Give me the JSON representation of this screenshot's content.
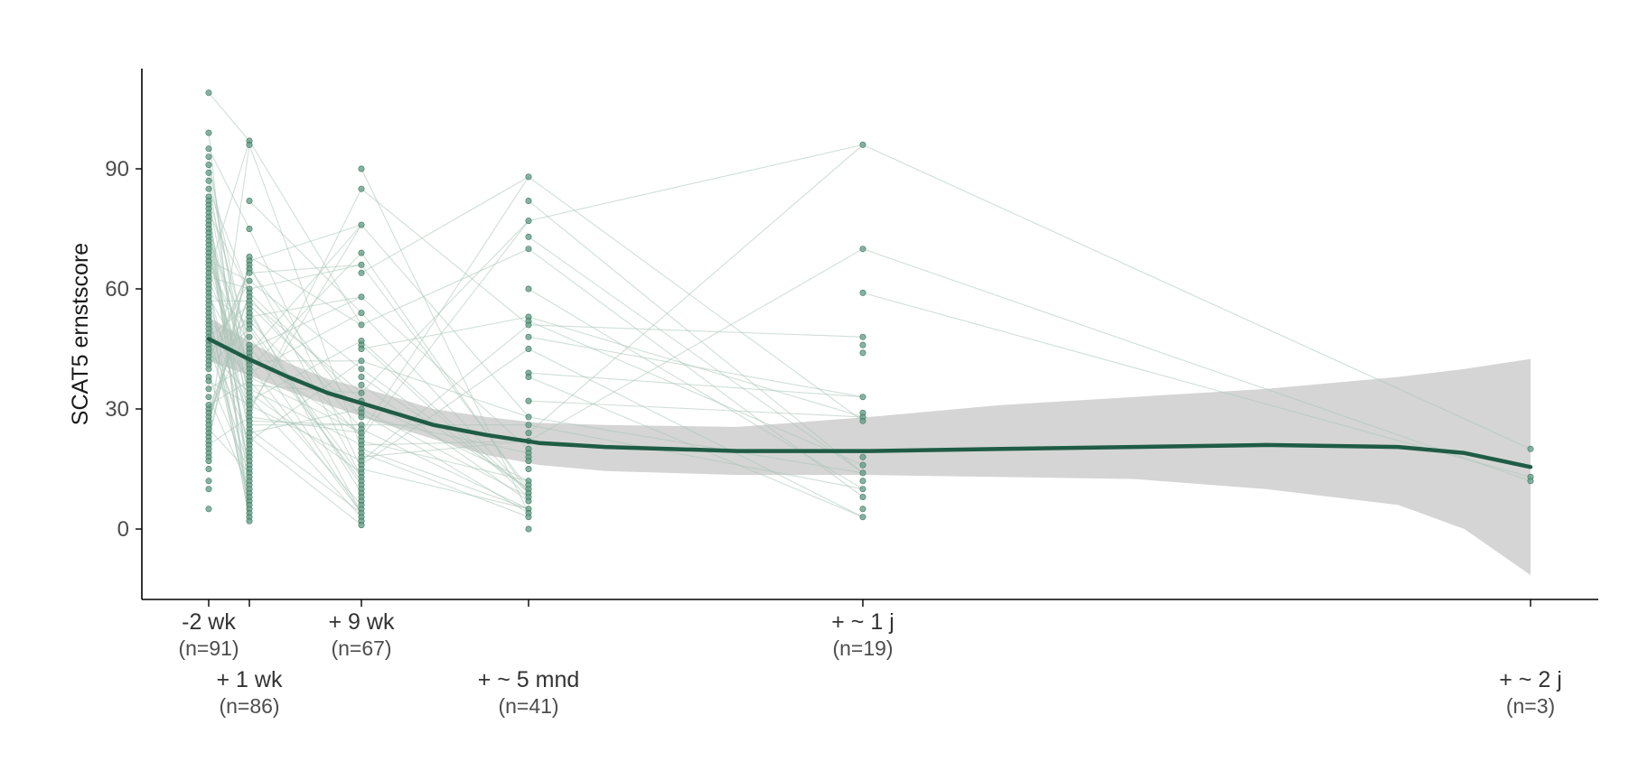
{
  "chart_data": {
    "type": "line",
    "title": "",
    "ylabel": "SCAT5 ernstscore",
    "xlabel": "",
    "ylim": [
      -17,
      115
    ],
    "yticks": [
      0,
      30,
      60,
      90
    ],
    "grid": false,
    "legend": "none",
    "colors": {
      "accent": "#1f5c45",
      "points": "#5f9a80",
      "individual_lines": "#a9c4b7",
      "ribbon": "#d3d3d3",
      "axis": "#000000"
    },
    "x_ticks": [
      {
        "id": "t1",
        "label": "-2 wk",
        "n": "(n=91)",
        "row": 1
      },
      {
        "id": "t2",
        "label": "+ 1 wk",
        "n": "(n=86)",
        "row": 2
      },
      {
        "id": "t3",
        "label": "+ 9 wk",
        "n": "(n=67)",
        "row": 1
      },
      {
        "id": "t4",
        "label": "+ ~ 5 mnd",
        "n": "(n=41)",
        "row": 2
      },
      {
        "id": "t5",
        "label": "+ ~ 1 j",
        "n": "(n=19)",
        "row": 1
      },
      {
        "id": "t6",
        "label": "+ ~ 2 j",
        "n": "(n=3)",
        "row": 2
      }
    ],
    "points": [
      {
        "tick": "t1",
        "values": [
          109,
          99,
          95,
          93,
          91,
          89,
          87,
          85,
          83,
          82,
          81,
          80,
          79,
          78,
          77,
          76,
          75,
          74,
          73,
          72,
          71,
          70,
          69,
          68,
          67,
          66,
          65,
          64,
          63,
          62,
          61,
          60,
          59,
          58,
          57,
          56,
          55,
          54,
          53,
          52,
          51,
          50,
          49,
          48,
          47,
          46,
          45,
          44,
          43,
          42,
          41,
          40,
          38,
          37,
          35,
          33,
          31,
          30,
          29,
          28,
          27,
          26,
          25,
          24,
          23,
          22,
          21,
          20,
          19,
          18,
          17,
          15,
          12,
          10,
          5
        ]
      },
      {
        "tick": "t2",
        "values": [
          97,
          96,
          82,
          75,
          68,
          67,
          66,
          65,
          64,
          62,
          60,
          59,
          58,
          57,
          56,
          55,
          54,
          53,
          52,
          51,
          50,
          48,
          46,
          45,
          44,
          43,
          42,
          41,
          40,
          39,
          38,
          37,
          36,
          35,
          34,
          33,
          32,
          31,
          30,
          29,
          28,
          27,
          26,
          25,
          24,
          23,
          22,
          21,
          20,
          19,
          18,
          17,
          16,
          15,
          14,
          13,
          12,
          11,
          10,
          9,
          8,
          7,
          6,
          5,
          4,
          3,
          2
        ]
      },
      {
        "tick": "t3",
        "values": [
          90,
          85,
          76,
          69,
          66,
          64,
          58,
          54,
          51,
          47,
          46,
          45,
          42,
          40,
          38,
          36,
          34,
          32,
          30,
          29,
          28,
          26,
          25,
          24,
          23,
          22,
          21,
          20,
          19,
          18,
          17,
          16,
          15,
          14,
          13,
          12,
          11,
          10,
          9,
          8,
          7,
          6,
          5,
          4,
          3,
          2,
          1
        ]
      },
      {
        "tick": "t4",
        "values": [
          88,
          82,
          77,
          73,
          70,
          60,
          53,
          52,
          51,
          48,
          45,
          39,
          38,
          32,
          28,
          26,
          24,
          22,
          20,
          19,
          18,
          17,
          15,
          12,
          11,
          10,
          9,
          8,
          7,
          5,
          4,
          3,
          0
        ]
      },
      {
        "tick": "t5",
        "values": [
          96,
          70,
          59,
          48,
          46,
          44,
          33,
          29,
          28,
          27,
          18,
          16,
          14,
          12,
          10,
          8,
          5,
          3
        ]
      },
      {
        "tick": "t6",
        "values": [
          20,
          13,
          12
        ]
      }
    ],
    "smooth": {
      "series_name": "",
      "tick_fraction": [
        0,
        0.03,
        0.06,
        0.09,
        0.13,
        0.17,
        0.21,
        0.25,
        0.3,
        0.4,
        0.5,
        0.6,
        0.7,
        0.8,
        0.9,
        0.95,
        1.0
      ],
      "fit": [
        47.5,
        42.5,
        38,
        34,
        30,
        26,
        23.5,
        21.5,
        20.5,
        19.5,
        19.5,
        20,
        20.5,
        21,
        20.5,
        19,
        15.5
      ],
      "lower": [
        42,
        38.5,
        34.5,
        31,
        26.5,
        22.5,
        18.5,
        16,
        14.5,
        13.5,
        13.5,
        13,
        12.5,
        10,
        6,
        0,
        -11.5
      ],
      "upper": [
        53,
        47,
        41.5,
        37.5,
        34,
        30,
        28,
        26.5,
        26,
        25.5,
        28,
        31,
        33,
        35,
        38,
        40,
        42.5
      ]
    }
  }
}
